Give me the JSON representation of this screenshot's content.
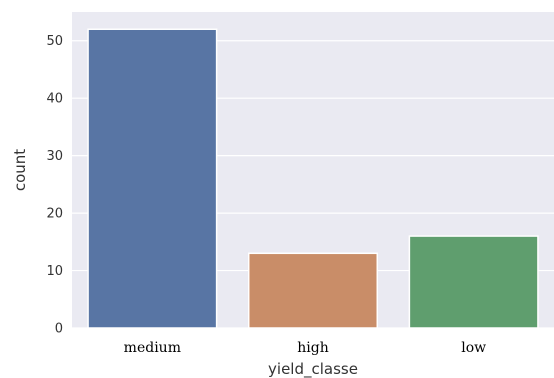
{
  "chart_data": {
    "type": "bar",
    "categories": [
      "medium",
      "high",
      "low"
    ],
    "values": [
      52,
      13,
      16
    ],
    "xlabel": "yield_classe",
    "ylabel": "count",
    "ylim": [
      0,
      55
    ],
    "yticks": [
      0,
      10,
      20,
      30,
      40,
      50
    ],
    "grid": true,
    "colors": {
      "background": "#eaeaf2",
      "grid": "#ffffff",
      "bars": [
        "#5875a4",
        "#c98d68",
        "#5f9e6e"
      ]
    }
  }
}
